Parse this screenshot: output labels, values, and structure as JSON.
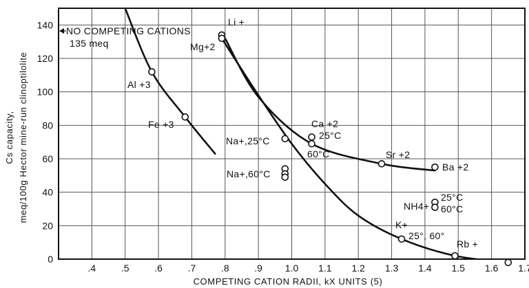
{
  "chart_data": {
    "type": "scatter",
    "title": "",
    "xlabel": "COMPETING CATION RADII, kX UNITS (5)",
    "ylabel_line1": "Cs capacity,",
    "ylabel_line2": "meq/100g Hector mine-run clinoptilolite",
    "xlim": [
      0.3,
      1.7
    ],
    "ylim": [
      0,
      150
    ],
    "x_ticks": [
      0.4,
      0.5,
      0.6,
      0.7,
      0.8,
      0.9,
      1.0,
      1.1,
      1.2,
      1.3,
      1.4,
      1.5,
      1.6,
      1.7
    ],
    "x_tick_labels": [
      ".4",
      ".5",
      ".6",
      ".7",
      ".8",
      ".9",
      "1.0",
      "1.1",
      "1.2",
      "1.3",
      "1.4",
      "1.5",
      "1.6",
      "1.7"
    ],
    "y_ticks": [
      0,
      20,
      40,
      60,
      80,
      100,
      120,
      140
    ],
    "y_tick_labels": [
      "0",
      "20",
      "40",
      "60",
      "80",
      "100",
      "120",
      "140"
    ],
    "grid": true,
    "points": [
      {
        "x": 0.58,
        "y": 112
      },
      {
        "x": 0.68,
        "y": 85
      },
      {
        "x": 0.79,
        "y": 134
      },
      {
        "x": 0.79,
        "y": 132
      },
      {
        "x": 0.98,
        "y": 72
      },
      {
        "x": 0.98,
        "y": 54
      },
      {
        "x": 0.98,
        "y": 51
      },
      {
        "x": 0.98,
        "y": 49
      },
      {
        "x": 1.06,
        "y": 73
      },
      {
        "x": 1.06,
        "y": 69
      },
      {
        "x": 1.27,
        "y": 57
      },
      {
        "x": 1.43,
        "y": 55
      },
      {
        "x": 1.43,
        "y": 34
      },
      {
        "x": 1.43,
        "y": 31
      },
      {
        "x": 1.33,
        "y": 12
      },
      {
        "x": 1.49,
        "y": 2
      },
      {
        "x": 1.65,
        "y": -2
      }
    ],
    "curves": [
      {
        "x": [
          0.5,
          0.58,
          0.68,
          0.77
        ],
        "y": [
          150,
          112,
          85,
          63
        ]
      },
      {
        "x": [
          0.79,
          0.9,
          1.0,
          1.1,
          1.2,
          1.33,
          1.49,
          1.65
        ],
        "y": [
          132,
          98,
          69,
          45,
          26,
          12,
          2,
          -2
        ]
      },
      {
        "x": [
          0.8,
          0.9,
          1.06,
          1.27,
          1.43
        ],
        "y": [
          132,
          97,
          69,
          57,
          53
        ]
      }
    ],
    "annotations": {
      "no_competing": "NO COMPETING CATIONS",
      "no_competing_value": "135 meq",
      "li": "Li +",
      "mg": "Mg+2",
      "al": "Al +3",
      "fe": "Fe +3",
      "na25": "Na+,25°C",
      "na60": "Na+,60°C",
      "ca": "Ca +2",
      "ca25": "25°C",
      "ca60": "60°C",
      "sr": "Sr +2",
      "ba": "Ba +2",
      "nh4": "NH4+",
      "nh4_25": "25°C",
      "nh4_60": "60°C",
      "k": "K+",
      "k_temps": "25°, 60°",
      "rb": "Rb +"
    }
  }
}
